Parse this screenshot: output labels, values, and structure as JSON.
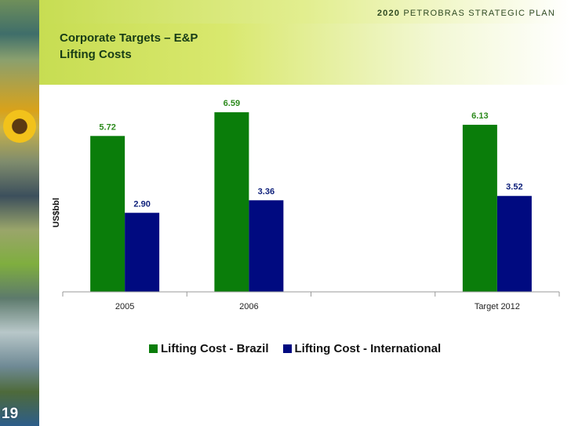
{
  "header": {
    "brand_year": "2020",
    "brand_text": "PETROBRAS STRATEGIC PLAN",
    "title_line1": "Corporate Targets – E&P",
    "title_line2": "Lifting Costs"
  },
  "page_number": "19",
  "colors": {
    "brazil": "#0a7d0a",
    "international": "#000a80",
    "label_brazil": "#2c8a1c",
    "label_international": "#0d1f7a"
  },
  "chart_data": {
    "type": "bar",
    "categories": [
      "2005",
      "2006",
      "",
      "Target 2012"
    ],
    "series": [
      {
        "name": "Lifting Cost - Brazil",
        "values": [
          5.72,
          6.59,
          null,
          6.13
        ]
      },
      {
        "name": "Lifting Cost - International",
        "values": [
          2.9,
          3.36,
          null,
          3.52
        ]
      }
    ],
    "data_labels": {
      "Lifting Cost - Brazil": [
        "5.72",
        "6.59",
        "",
        "6.13"
      ],
      "Lifting Cost - International": [
        "2.90",
        "3.36",
        "",
        "3.52"
      ]
    },
    "ylabel": "US$bbl",
    "xlabel": "",
    "ylim": [
      0,
      7.6
    ],
    "grid": false,
    "legend_position": "bottom"
  }
}
